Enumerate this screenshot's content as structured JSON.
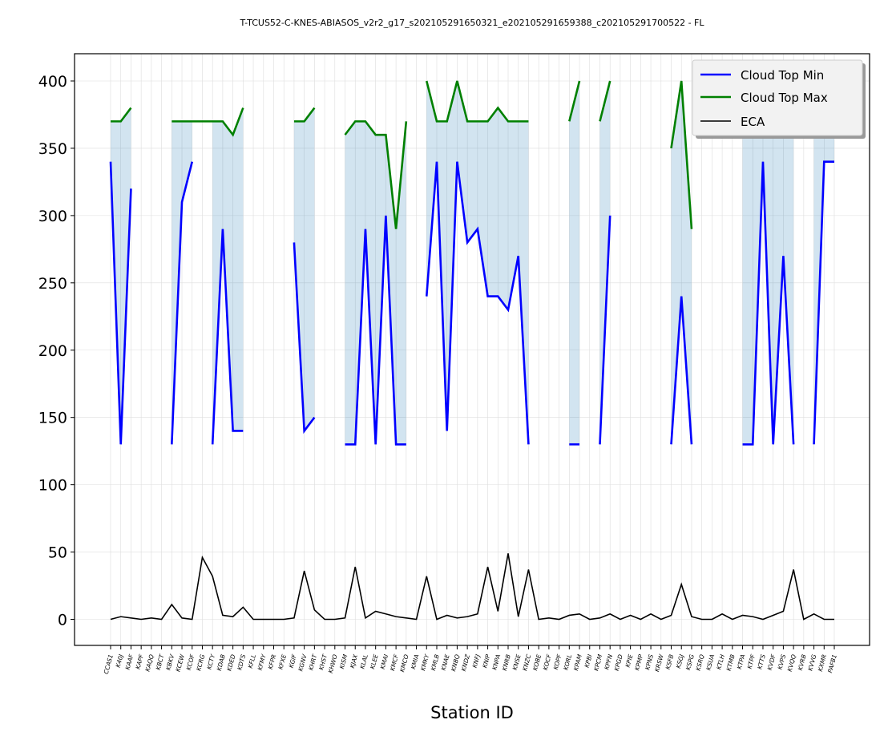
{
  "chart_data": {
    "type": "line",
    "title": "T-TCUS52-C-KNES-ABIASOS_v2r2_g17_s202105291650321_e202105291659388_c202105291700522 - FL",
    "xlabel": "Station ID",
    "ylabel": "",
    "ylim": [
      -20,
      420
    ],
    "yticks": [
      0,
      50,
      100,
      150,
      200,
      250,
      300,
      350,
      400
    ],
    "grid": true,
    "legend_position": "top-right",
    "categories": [
      "CCAS1",
      "K40J",
      "KAAF",
      "KAPF",
      "KAQQ",
      "KBCT",
      "KBKV",
      "KCEW",
      "KCOF",
      "KCRG",
      "KCTY",
      "KDAB",
      "KDED",
      "KDTS",
      "KFLL",
      "KFMY",
      "KFPR",
      "KFXE",
      "KGIF",
      "KGNV",
      "KHRT",
      "KHST",
      "KHWO",
      "KISM",
      "KJAX",
      "KLAL",
      "KLEE",
      "KMAI",
      "KMCF",
      "KMCO",
      "KMIA",
      "KMKY",
      "KMLB",
      "KNAE",
      "KNBQ",
      "KNDZ",
      "KNFJ",
      "KNIP",
      "KNPA",
      "KNRB",
      "KNSE",
      "KNZC",
      "KOBE",
      "KOCF",
      "KOPF",
      "KORL",
      "KPAM",
      "KPBI",
      "KPCM",
      "KPFN",
      "KPGD",
      "KPIE",
      "KPMP",
      "KPNS",
      "KRSW",
      "KSFB",
      "KSGJ",
      "KSPG",
      "KSRQ",
      "KSUA",
      "KTLH",
      "KTMB",
      "KTPA",
      "KTPF",
      "KTTS",
      "KVDF",
      "KVPS",
      "KVQQ",
      "KVRB",
      "KVVG",
      "KXMR",
      "PAFB1"
    ],
    "series": [
      {
        "name": "Cloud Top Min",
        "color": "#0000ff",
        "values": [
          340,
          130,
          320,
          null,
          null,
          null,
          130,
          310,
          340,
          null,
          130,
          290,
          140,
          140,
          null,
          null,
          null,
          null,
          280,
          140,
          150,
          null,
          null,
          130,
          130,
          290,
          130,
          300,
          130,
          130,
          null,
          240,
          340,
          140,
          340,
          280,
          290,
          240,
          240,
          230,
          270,
          130,
          null,
          null,
          null,
          130,
          130,
          null,
          130,
          300,
          null,
          null,
          null,
          null,
          null,
          130,
          240,
          130,
          null,
          null,
          null,
          null,
          130,
          130,
          340,
          130,
          270,
          130,
          null,
          130,
          340,
          340
        ]
      },
      {
        "name": "Cloud Top Max",
        "color": "#008000",
        "values": [
          370,
          370,
          380,
          null,
          null,
          null,
          370,
          370,
          370,
          370,
          370,
          370,
          360,
          380,
          null,
          null,
          null,
          null,
          370,
          370,
          380,
          null,
          null,
          360,
          370,
          370,
          360,
          360,
          290,
          370,
          null,
          400,
          370,
          370,
          400,
          370,
          370,
          370,
          380,
          370,
          370,
          370,
          null,
          null,
          null,
          370,
          400,
          null,
          370,
          400,
          null,
          null,
          null,
          null,
          null,
          350,
          400,
          290,
          null,
          null,
          null,
          null,
          370,
          370,
          370,
          370,
          370,
          370,
          null,
          360,
          370,
          370
        ]
      },
      {
        "name": "ECA",
        "color": "#000000",
        "values": [
          0,
          2,
          1,
          0,
          1,
          0,
          11,
          1,
          0,
          46,
          32,
          3,
          2,
          9,
          0,
          0,
          0,
          0,
          1,
          36,
          7,
          0,
          0,
          1,
          39,
          1,
          6,
          4,
          2,
          1,
          0,
          32,
          0,
          3,
          1,
          2,
          4,
          39,
          6,
          49,
          2,
          37,
          0,
          1,
          0,
          3,
          4,
          0,
          1,
          4,
          0,
          3,
          0,
          4,
          0,
          3,
          26,
          2,
          0,
          0,
          4,
          0,
          3,
          2,
          0,
          3,
          6,
          37,
          0,
          4,
          0,
          0
        ]
      }
    ]
  }
}
